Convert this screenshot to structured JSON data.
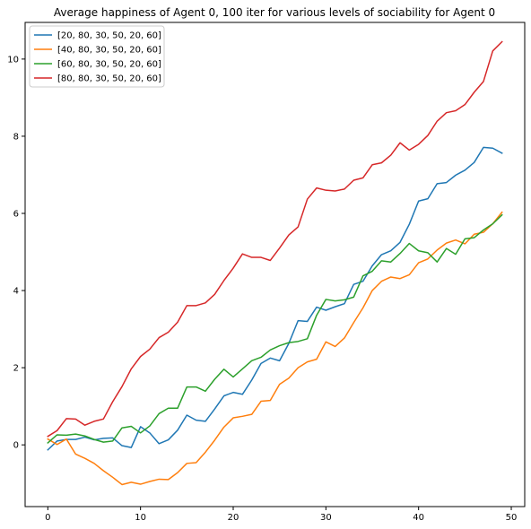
{
  "chart_data": {
    "type": "line",
    "title": "Average happiness of Agent 0, 100 iter for various levels of sociability for Agent 0",
    "xlabel": "",
    "ylabel": "",
    "xlim": [
      -2.45,
      51.45
    ],
    "ylim": [
      -1.6,
      10.95
    ],
    "xticks": [
      0,
      10,
      20,
      30,
      40,
      50
    ],
    "yticks": [
      0,
      2,
      4,
      6,
      8,
      10
    ],
    "grid": false,
    "legend_position": "top-left",
    "x": [
      0,
      1,
      2,
      3,
      4,
      5,
      6,
      7,
      8,
      9,
      10,
      11,
      12,
      13,
      14,
      15,
      16,
      17,
      18,
      19,
      20,
      21,
      22,
      23,
      24,
      25,
      26,
      27,
      28,
      29,
      30,
      31,
      32,
      33,
      34,
      35,
      36,
      37,
      38,
      39,
      40,
      41,
      42,
      43,
      44,
      45,
      46,
      47,
      48,
      49
    ],
    "series": [
      {
        "name": "[20, 80, 30, 50, 20, 60]",
        "color": "#1f77b4",
        "values": [
          -0.13,
          0.1,
          0.14,
          0.14,
          0.2,
          0.13,
          0.17,
          0.18,
          -0.02,
          -0.07,
          0.47,
          0.31,
          0.03,
          0.13,
          0.38,
          0.77,
          0.64,
          0.61,
          0.93,
          1.27,
          1.36,
          1.31,
          1.68,
          2.11,
          2.25,
          2.18,
          2.63,
          3.22,
          3.2,
          3.57,
          3.49,
          3.58,
          3.66,
          4.16,
          4.24,
          4.64,
          4.93,
          5.03,
          5.25,
          5.72,
          6.32,
          6.38,
          6.77,
          6.8,
          6.99,
          7.12,
          7.32,
          7.71,
          7.69,
          7.56
        ]
      },
      {
        "name": "[40, 80, 30, 50, 20, 60]",
        "color": "#ff7f0e",
        "values": [
          0.15,
          0.01,
          0.15,
          -0.24,
          -0.35,
          -0.48,
          -0.67,
          -0.84,
          -1.03,
          -0.97,
          -1.02,
          -0.95,
          -0.89,
          -0.9,
          -0.72,
          -0.48,
          -0.46,
          -0.19,
          0.12,
          0.46,
          0.7,
          0.74,
          0.79,
          1.13,
          1.15,
          1.57,
          1.73,
          2.0,
          2.15,
          2.22,
          2.67,
          2.55,
          2.77,
          3.17,
          3.55,
          4.0,
          4.24,
          4.35,
          4.31,
          4.41,
          4.72,
          4.82,
          5.05,
          5.23,
          5.31,
          5.21,
          5.46,
          5.51,
          5.73,
          6.03
        ]
      },
      {
        "name": "[60, 80, 30, 50, 20, 60]",
        "color": "#2ca02c",
        "values": [
          0.05,
          0.26,
          0.25,
          0.28,
          0.23,
          0.14,
          0.07,
          0.1,
          0.44,
          0.48,
          0.31,
          0.49,
          0.81,
          0.95,
          0.95,
          1.5,
          1.5,
          1.39,
          1.7,
          1.96,
          1.76,
          1.97,
          2.18,
          2.27,
          2.46,
          2.57,
          2.65,
          2.68,
          2.75,
          3.36,
          3.77,
          3.73,
          3.76,
          3.83,
          4.38,
          4.5,
          4.77,
          4.74,
          4.96,
          5.22,
          5.03,
          4.98,
          4.74,
          5.09,
          4.94,
          5.34,
          5.37,
          5.57,
          5.73,
          5.96
        ]
      },
      {
        "name": "[80, 80, 30, 50, 20, 60]",
        "color": "#d62728",
        "values": [
          0.22,
          0.37,
          0.68,
          0.67,
          0.51,
          0.61,
          0.67,
          1.12,
          1.51,
          1.97,
          2.29,
          2.48,
          2.78,
          2.92,
          3.18,
          3.61,
          3.61,
          3.68,
          3.9,
          4.26,
          4.58,
          4.95,
          4.86,
          4.86,
          4.78,
          5.1,
          5.44,
          5.65,
          6.37,
          6.66,
          6.6,
          6.58,
          6.63,
          6.86,
          6.92,
          7.26,
          7.31,
          7.51,
          7.83,
          7.64,
          7.79,
          8.02,
          8.39,
          8.61,
          8.66,
          8.82,
          9.14,
          9.42,
          10.21,
          10.45
        ]
      }
    ]
  }
}
